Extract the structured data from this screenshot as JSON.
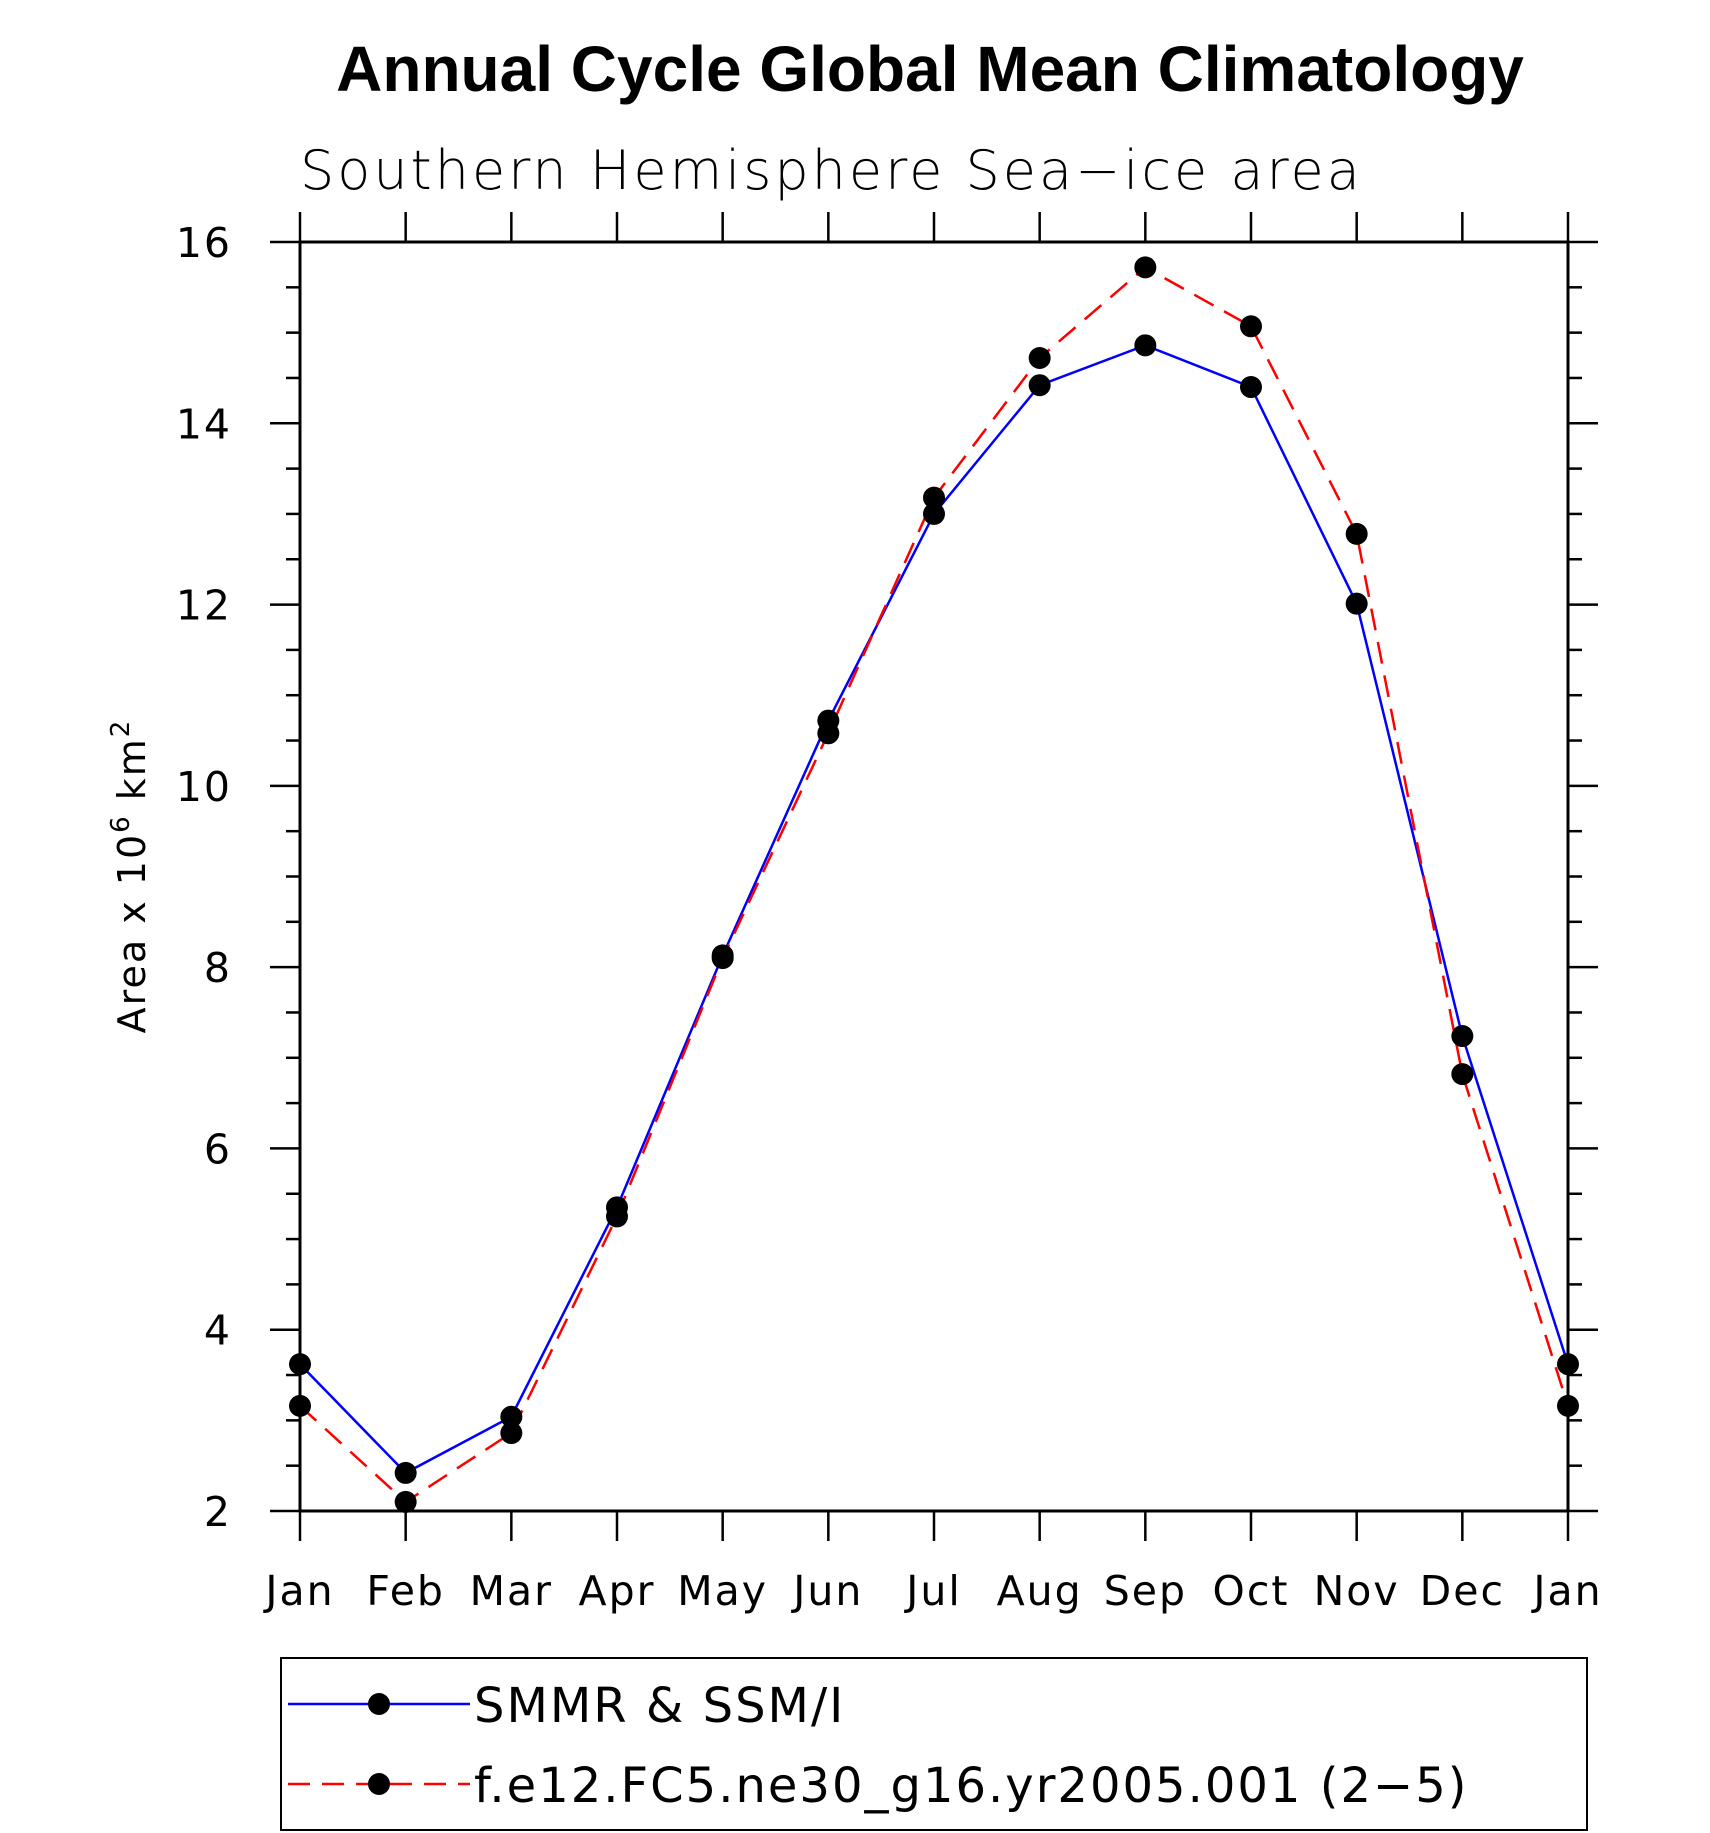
{
  "chart_data": {
    "type": "line",
    "title": "Annual Cycle Global Mean Climatology",
    "subtitle": "Southern Hemisphere Sea−ice area",
    "ylabel": "Area x 10",
    "ylabel_superscript": "6",
    "ylabel_unit": "km",
    "ylabel_unit_superscript": "2",
    "xlabel": "",
    "categories": [
      "Jan",
      "Feb",
      "Mar",
      "Apr",
      "May",
      "Jun",
      "Jul",
      "Aug",
      "Sep",
      "Oct",
      "Nov",
      "Dec",
      "Jan"
    ],
    "ylim": [
      2,
      16
    ],
    "yticks": [
      "2",
      "4",
      "6",
      "8",
      "10",
      "12",
      "14",
      "16"
    ],
    "y_minor_step": 0.5,
    "grid": false,
    "legend_position": "bottom",
    "series": [
      {
        "name": "SMMR & SSM/I",
        "color": "#0000ff",
        "style": "solid",
        "marker": "filled-circle",
        "values": [
          3.62,
          2.42,
          3.04,
          5.35,
          8.13,
          10.72,
          13.0,
          14.42,
          14.86,
          14.4,
          12.01,
          7.24,
          3.62
        ]
      },
      {
        "name": "f.e12.FC5.ne30_g16.yr2005.001 (2−5)",
        "color": "#ff0000",
        "style": "dashed",
        "marker": "filled-circle",
        "values": [
          3.16,
          2.1,
          2.86,
          5.25,
          8.1,
          10.58,
          13.18,
          14.72,
          15.72,
          15.07,
          12.78,
          6.82,
          3.16
        ]
      }
    ]
  }
}
